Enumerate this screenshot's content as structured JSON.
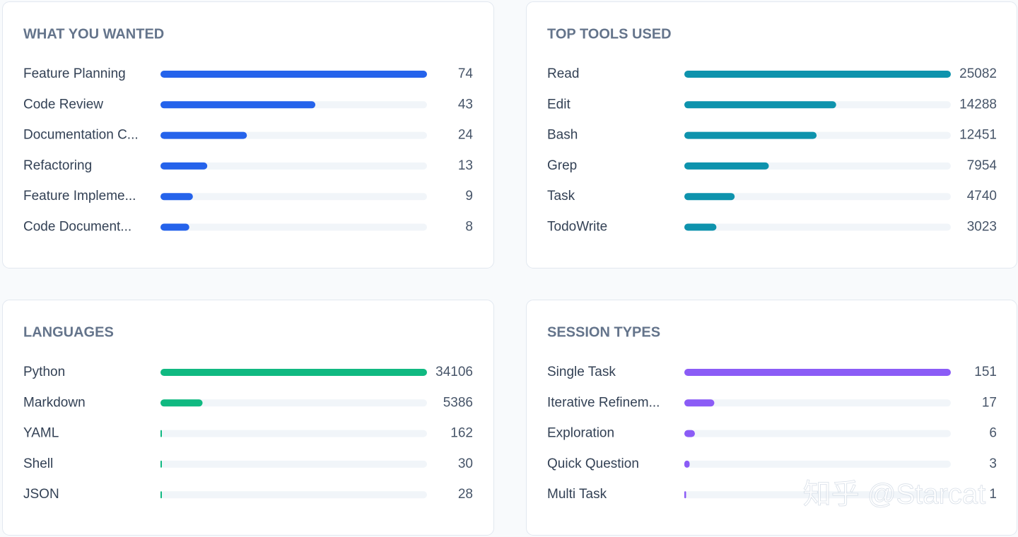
{
  "chart_data": [
    {
      "type": "bar",
      "title": "WHAT YOU WANTED",
      "color": "#2563eb",
      "categories": [
        "Feature Planning",
        "Code Review",
        "Documentation C...",
        "Refactoring",
        "Feature Impleme...",
        "Code Document..."
      ],
      "values": [
        74,
        43,
        24,
        13,
        9,
        8
      ]
    },
    {
      "type": "bar",
      "title": "TOP TOOLS USED",
      "color": "#0e93ad",
      "categories": [
        "Read",
        "Edit",
        "Bash",
        "Grep",
        "Task",
        "TodoWrite"
      ],
      "values": [
        25082,
        14288,
        12451,
        7954,
        4740,
        3023
      ]
    },
    {
      "type": "bar",
      "title": "LANGUAGES",
      "color": "#10b981",
      "categories": [
        "Python",
        "Markdown",
        "YAML",
        "Shell",
        "JSON"
      ],
      "values": [
        34106,
        5386,
        162,
        30,
        28
      ]
    },
    {
      "type": "bar",
      "title": "SESSION TYPES",
      "color": "#8b5cf6",
      "categories": [
        "Single Task",
        "Iterative Refinem...",
        "Exploration",
        "Quick Question",
        "Multi Task"
      ],
      "values": [
        151,
        17,
        6,
        3,
        1
      ]
    }
  ],
  "watermark": "知乎 @Starcat"
}
